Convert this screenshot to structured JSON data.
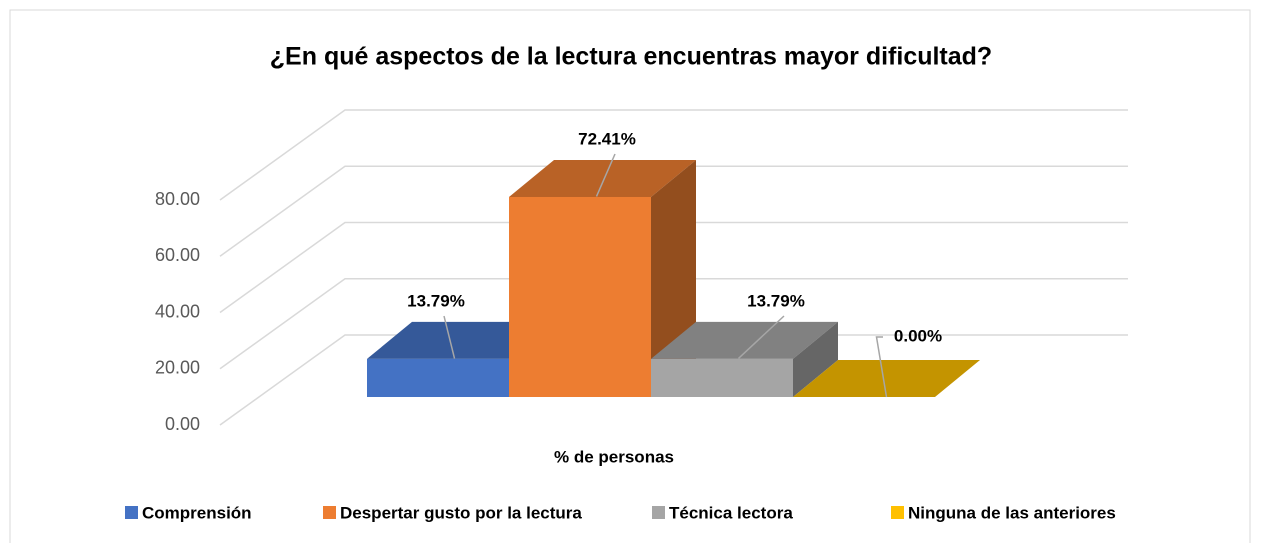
{
  "chart_data": {
    "type": "bar3d",
    "title": "¿En qué aspectos de la lectura encuentras mayor dificultad?",
    "categories": [
      "% de personas"
    ],
    "series": [
      {
        "name": "Comprensión",
        "color": "#4472c4",
        "values": [
          13.79
        ],
        "value_labels": [
          "13.79%"
        ]
      },
      {
        "name": "Despertar gusto por la lectura",
        "color": "#ed7d31",
        "values": [
          72.41
        ],
        "value_labels": [
          "72.41%"
        ]
      },
      {
        "name": "Técnica lectora",
        "color": "#a5a5a5",
        "values": [
          13.79
        ],
        "value_labels": [
          "13.79%"
        ]
      },
      {
        "name": "Ninguna de las anteriores",
        "color": "#ffc000",
        "values": [
          0
        ],
        "value_labels": [
          "0.00%"
        ]
      }
    ],
    "ylim": [
      0,
      80
    ],
    "yticks": [
      {
        "value": 0,
        "label": "0.00"
      },
      {
        "value": 20,
        "label": "20.00"
      },
      {
        "value": 40,
        "label": "40.00"
      },
      {
        "value": 60,
        "label": "60.00"
      },
      {
        "value": 80,
        "label": "80.00"
      }
    ],
    "grid": true,
    "legend": "bottom"
  }
}
